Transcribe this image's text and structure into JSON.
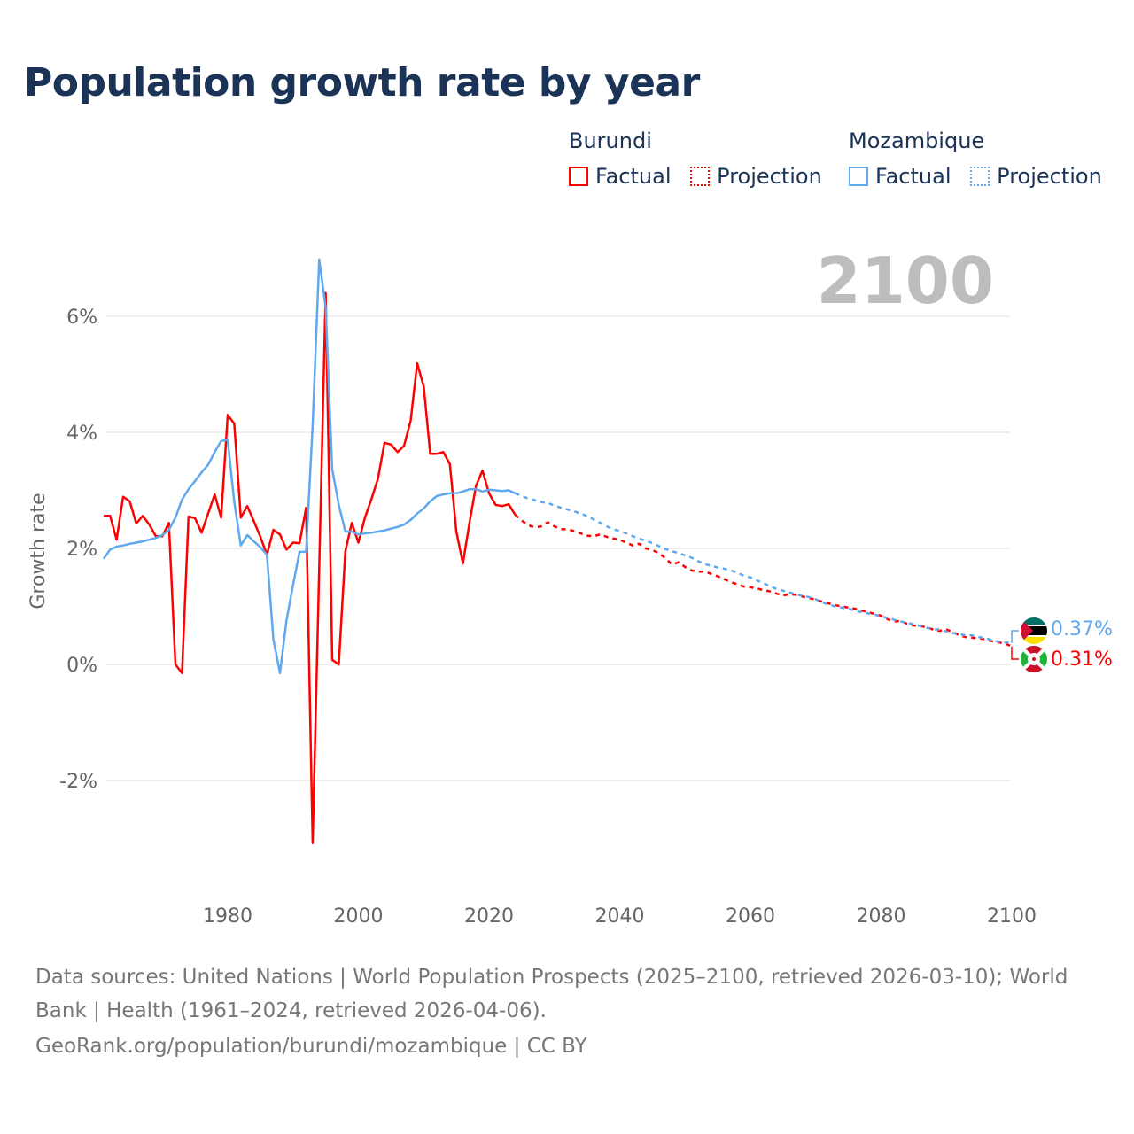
{
  "title": "Population growth rate by year",
  "legend": {
    "groups": [
      {
        "name": "Burundi",
        "color": "#ff0000",
        "factual": "Factual",
        "projection": "Projection"
      },
      {
        "name": "Mozambique",
        "color": "#5fa8ee",
        "factual": "Factual",
        "projection": "Projection"
      }
    ]
  },
  "current_year": "2100",
  "footer": {
    "line1": "Data sources: United Nations | World Population Prospects (2025–2100, retrieved 2026-03-10); World",
    "line2": "Bank | Health (1961–2024, retrieved 2026-04-06).",
    "line3": "GeoRank.org/population/burundi/mozambique | CC BY"
  },
  "chart_data": {
    "type": "line",
    "title": "Population growth rate by year",
    "xlabel": "",
    "ylabel": "Growth rate",
    "xlim": [
      1961,
      2100
    ],
    "ylim": [
      -3.3,
      7.2
    ],
    "x_ticks": [
      1980,
      2000,
      2020,
      2040,
      2060,
      2080,
      2100
    ],
    "x_tick_labels": [
      "1980",
      "2000",
      "2020",
      "2040",
      "2060",
      "2080",
      "2100"
    ],
    "y_ticks": [
      -2,
      0,
      2,
      4,
      6
    ],
    "y_tick_labels": [
      "-2%",
      "0%",
      "2%",
      "4%",
      "6%"
    ],
    "grid": true,
    "end_labels": {
      "Mozambique": "0.37%",
      "Burundi": "0.31%"
    },
    "series": [
      {
        "name": "Burundi Factual",
        "color": "#ff0000",
        "style": "solid",
        "x_start": 1961,
        "values": [
          2.56,
          2.56,
          2.15,
          2.89,
          2.81,
          2.43,
          2.56,
          2.41,
          2.21,
          2.21,
          2.44,
          0.0,
          -0.15,
          2.55,
          2.52,
          2.27,
          2.6,
          2.93,
          2.53,
          4.3,
          4.15,
          2.53,
          2.73,
          2.47,
          2.2,
          1.89,
          2.32,
          2.24,
          1.98,
          2.1,
          2.09,
          2.7,
          -3.08,
          1.66,
          6.4,
          0.08,
          0.0,
          1.95,
          2.44,
          2.1,
          2.53,
          2.85,
          3.2,
          3.82,
          3.79,
          3.66,
          3.77,
          4.2,
          5.19,
          4.79,
          3.63,
          3.63,
          3.66,
          3.45,
          2.29,
          1.74,
          2.44,
          3.08,
          3.34,
          2.95,
          2.75,
          2.73,
          2.76,
          2.58
        ]
      },
      {
        "name": "Burundi Projection",
        "color": "#ff0000",
        "style": "dotted",
        "x_start": 2024,
        "values": [
          2.58,
          2.48,
          2.4,
          2.36,
          2.38,
          2.45,
          2.38,
          2.33,
          2.33,
          2.3,
          2.26,
          2.22,
          2.21,
          2.24,
          2.2,
          2.17,
          2.15,
          2.1,
          2.05,
          2.08,
          2.0,
          1.97,
          1.92,
          1.83,
          1.72,
          1.76,
          1.68,
          1.62,
          1.6,
          1.6,
          1.56,
          1.52,
          1.47,
          1.42,
          1.38,
          1.34,
          1.33,
          1.31,
          1.28,
          1.26,
          1.22,
          1.19,
          1.21,
          1.2,
          1.17,
          1.14,
          1.12,
          1.08,
          1.05,
          1.02,
          1.0,
          0.98,
          0.96,
          0.93,
          0.9,
          0.87,
          0.84,
          0.78,
          0.74,
          0.75,
          0.7,
          0.67,
          0.66,
          0.64,
          0.6,
          0.58,
          0.6,
          0.56,
          0.5,
          0.47,
          0.46,
          0.45,
          0.43,
          0.4,
          0.38,
          0.36,
          0.31
        ]
      },
      {
        "name": "Mozambique Factual",
        "color": "#5fa8ee",
        "style": "solid",
        "x_start": 1961,
        "values": [
          1.82,
          1.98,
          2.03,
          2.05,
          2.08,
          2.1,
          2.12,
          2.15,
          2.18,
          2.23,
          2.32,
          2.53,
          2.84,
          3.02,
          3.16,
          3.31,
          3.44,
          3.66,
          3.85,
          3.87,
          2.8,
          2.05,
          2.23,
          2.12,
          2.02,
          1.89,
          0.43,
          -0.15,
          0.76,
          1.37,
          1.94,
          1.94,
          4.12,
          6.98,
          6.15,
          3.36,
          2.75,
          2.29,
          2.29,
          2.24,
          2.26,
          2.27,
          2.29,
          2.31,
          2.34,
          2.37,
          2.41,
          2.49,
          2.6,
          2.69,
          2.81,
          2.9,
          2.93,
          2.95,
          2.95,
          2.98,
          3.02,
          3.02,
          2.98,
          3.01,
          3.0,
          2.99,
          3.0,
          2.95
        ]
      },
      {
        "name": "Mozambique Projection",
        "color": "#5fa8ee",
        "style": "dotted",
        "x_start": 2024,
        "x_step": 1,
        "values": [
          2.95,
          2.9,
          2.86,
          2.83,
          2.8,
          2.78,
          2.74,
          2.7,
          2.67,
          2.64,
          2.6,
          2.56,
          2.5,
          2.44,
          2.38,
          2.33,
          2.3,
          2.26,
          2.21,
          2.17,
          2.13,
          2.09,
          2.04,
          1.99,
          1.95,
          1.92,
          1.88,
          1.84,
          1.78,
          1.73,
          1.7,
          1.67,
          1.65,
          1.62,
          1.58,
          1.53,
          1.5,
          1.45,
          1.4,
          1.35,
          1.3,
          1.27,
          1.24,
          1.21,
          1.18,
          1.16,
          1.12,
          1.07,
          1.03,
          1.0,
          0.98,
          0.96,
          0.93,
          0.9,
          0.88,
          0.86,
          0.83,
          0.8,
          0.77,
          0.74,
          0.72,
          0.69,
          0.66,
          0.63,
          0.61,
          0.6,
          0.57,
          0.54,
          0.52,
          0.5,
          0.5,
          0.47,
          0.45,
          0.42,
          0.39,
          0.38,
          0.37
        ]
      }
    ]
  }
}
